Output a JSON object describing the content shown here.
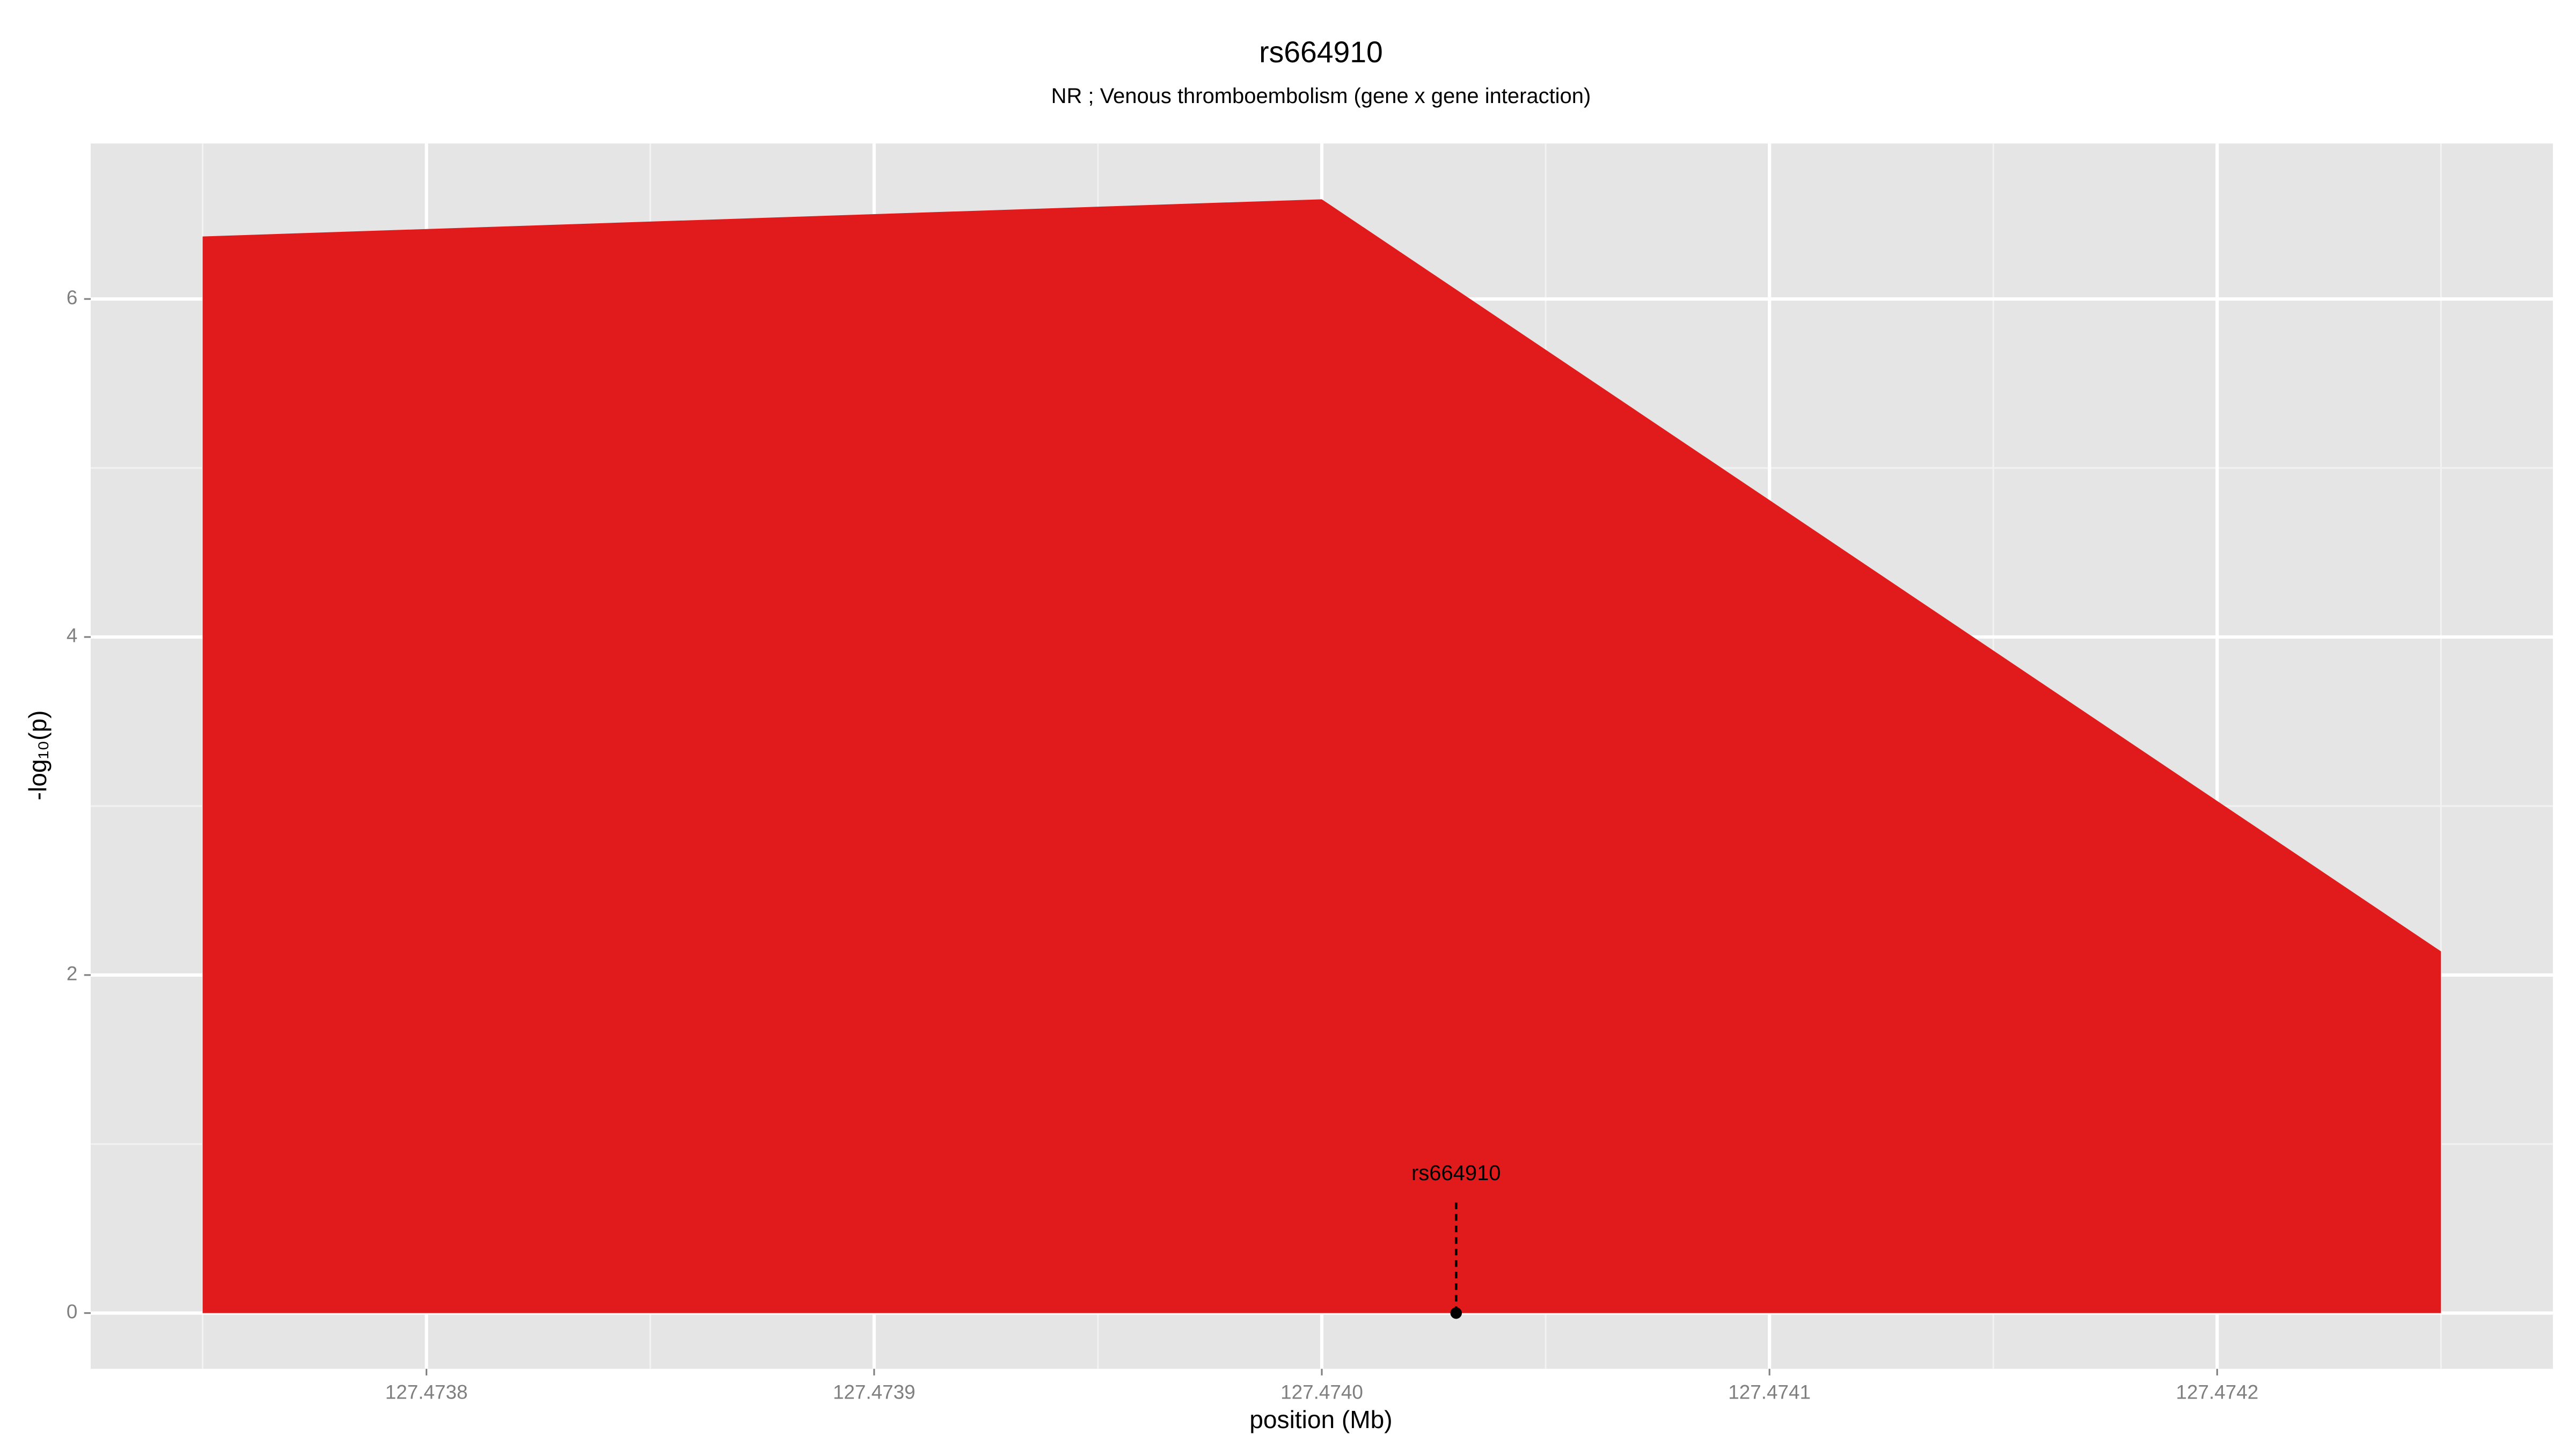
{
  "chart_data": {
    "type": "area",
    "title": "rs664910",
    "subtitle": "NR ; Venous thromboembolism (gene x gene interaction)",
    "xlabel": "position (Mb)",
    "ylabel": "-log₁₀(p)",
    "x": [
      127.47375,
      127.474,
      127.47425
    ],
    "series": [
      {
        "color": "#e11b1c",
        "values": [
          6.37,
          6.59,
          2.14
        ]
      }
    ],
    "xlim": [
      127.473725,
      127.474275
    ],
    "ylim": [
      -0.33,
      6.92
    ],
    "xticks": [
      127.4738,
      127.4739,
      {
        "value": 127.474,
        "label": "127.4740"
      },
      127.4741,
      127.4742
    ],
    "yticks": [
      0,
      2,
      4,
      6
    ],
    "grid": true,
    "annotations": [
      {
        "text": "rs664910",
        "x": 127.47403,
        "y": 0
      }
    ]
  }
}
